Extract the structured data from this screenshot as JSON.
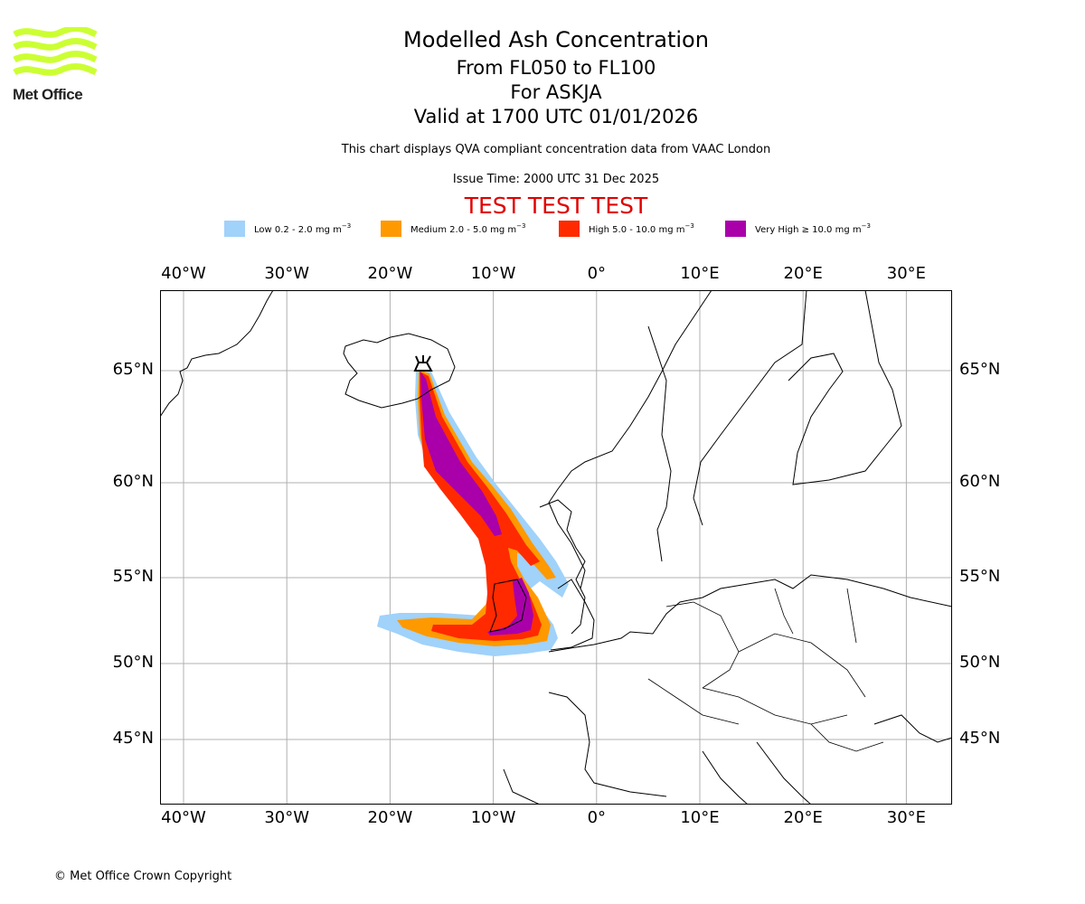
{
  "logo": {
    "text": "Met Office",
    "color": "#ccff33"
  },
  "header": {
    "title": "Modelled Ash Concentration",
    "subtitle_levels": "From FL050 to FL100",
    "subtitle_volcano": "For ASKJA",
    "subtitle_valid": "Valid at 1700 UTC 01/01/2026",
    "description": "This chart displays QVA compliant concentration data from VAAC London",
    "issue_time": "Issue Time: 2000 UTC 31 Dec 2025",
    "test_banner": "TEST TEST TEST",
    "test_color": "#e00000"
  },
  "legend": [
    {
      "label": "Low 0.2 - 2.0 mg m",
      "unit_exp": "−3",
      "color": "#a0d2fa"
    },
    {
      "label": "Medium 2.0 - 5.0 mg m",
      "unit_exp": "−3",
      "color": "#ff9900"
    },
    {
      "label": "High 5.0 - 10.0 mg m",
      "unit_exp": "−3",
      "color": "#ff2a00"
    },
    {
      "label": "Very High  ≥  10.0 mg m",
      "unit_exp": "−3",
      "color": "#aa00aa"
    }
  ],
  "axes": {
    "lon_ticks": [
      "40°W",
      "30°W",
      "20°W",
      "10°W",
      "0°",
      "10°E",
      "20°E",
      "30°E"
    ],
    "lon_values": [
      -40,
      -30,
      -20,
      -10,
      0,
      10,
      20,
      30
    ],
    "lat_ticks": [
      "65°N",
      "60°N",
      "55°N",
      "50°N",
      "45°N"
    ],
    "lat_values": [
      65,
      60,
      55,
      50,
      45
    ],
    "lon_range": [
      -42.3,
      34.5
    ],
    "lat_range": [
      41.2,
      68.5
    ]
  },
  "volcano": {
    "name": "ASKJA",
    "lon": -16.75,
    "lat": 65.03
  },
  "footer": {
    "copyright": "© Met Office Crown Copyright"
  }
}
